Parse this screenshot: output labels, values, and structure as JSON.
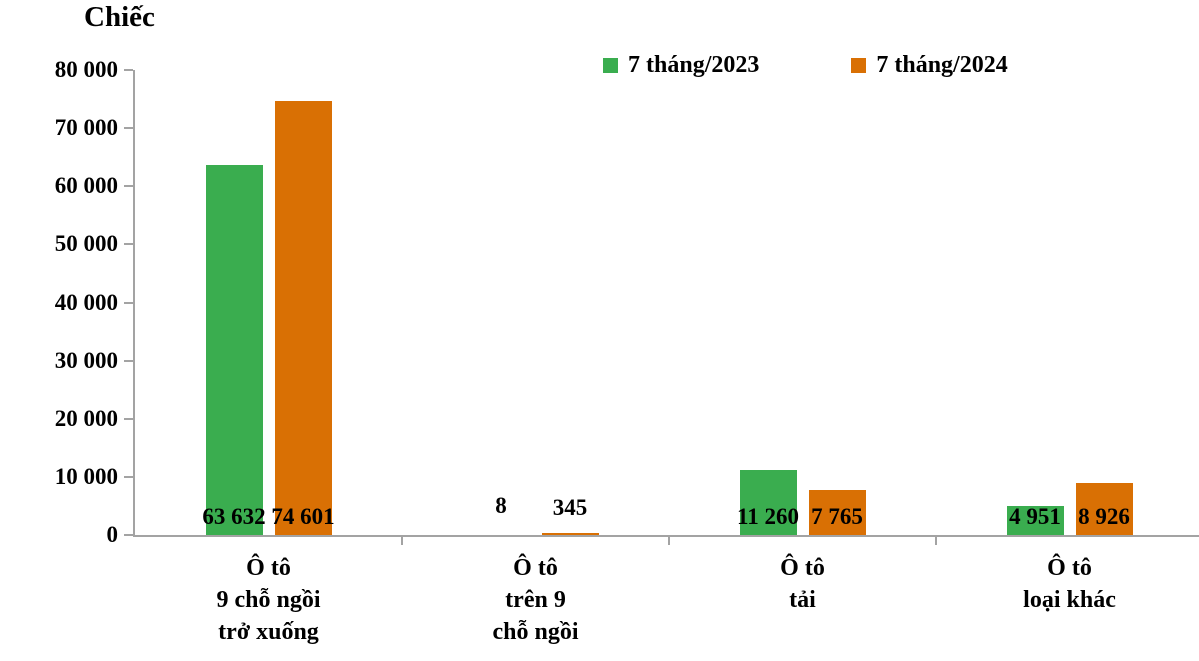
{
  "chart_data": {
    "type": "bar",
    "unit_label": "Chiếc",
    "categories": [
      "Ô tô\n9 chỗ ngồi\ntrở xuống",
      "Ô tô\ntrên 9\nchỗ ngồi",
      "Ô tô\ntải",
      "Ô tô\nloại khác"
    ],
    "series": [
      {
        "name": "7 tháng/2023",
        "color": "#3aad4f",
        "values": [
          63632,
          8,
          11260,
          4951
        ],
        "value_labels": [
          "63 632",
          "8",
          "11 260",
          "4 951"
        ]
      },
      {
        "name": "7 tháng/2024",
        "color": "#d97004",
        "values": [
          74601,
          345,
          7765,
          8926
        ],
        "value_labels": [
          "74 601",
          "345",
          "7 765",
          "8 926"
        ]
      }
    ],
    "y_axis": {
      "min": 0,
      "max": 80000,
      "step": 10000,
      "tick_labels": [
        "0",
        "10 000",
        "20 000",
        "30 000",
        "40 000",
        "50 000",
        "60 000",
        "70 000",
        "80 000"
      ]
    },
    "legend_position": "top",
    "grid": false
  },
  "colors": {
    "axis": "#a3a3a3",
    "text": "#000000"
  }
}
